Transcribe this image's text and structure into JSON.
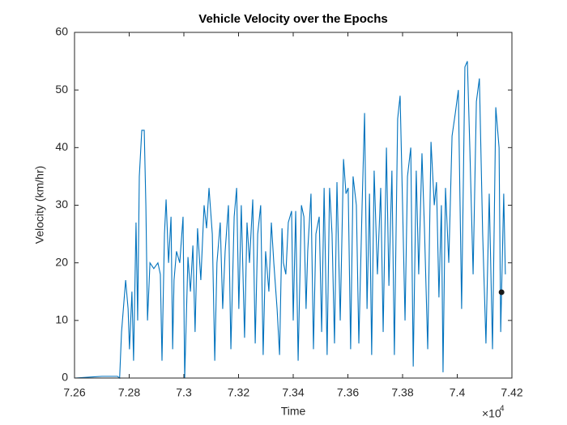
{
  "chart_data": {
    "type": "line",
    "title": "Vehicle Velocity over the Epochs",
    "x_label": "Time",
    "y_label": "Velocity (km/hr)",
    "x_exponent": {
      "base": "×10",
      "power": "4"
    },
    "xlim": [
      72600,
      74200
    ],
    "ylim": [
      0,
      60
    ],
    "xticks": [
      {
        "value": 72600,
        "label": "7.26"
      },
      {
        "value": 72800,
        "label": "7.28"
      },
      {
        "value": 73000,
        "label": "7.3"
      },
      {
        "value": 73200,
        "label": "7.32"
      },
      {
        "value": 73400,
        "label": "7.34"
      },
      {
        "value": 73600,
        "label": "7.36"
      },
      {
        "value": 73800,
        "label": "7.38"
      },
      {
        "value": 74000,
        "label": "7.4"
      },
      {
        "value": 74200,
        "label": "7.42"
      }
    ],
    "yticks": [
      0,
      10,
      20,
      30,
      40,
      50,
      60
    ],
    "grid": false,
    "series": [
      {
        "color": "#0072bd",
        "x": [
          72600,
          72668,
          72700,
          72757,
          72765,
          72772,
          72787,
          72796,
          72801,
          72810,
          72816,
          72825,
          72831,
          72837,
          72846,
          72855,
          72861,
          72867,
          72876,
          72890,
          72905,
          72914,
          72920,
          72929,
          72935,
          72944,
          72953,
          72959,
          72964,
          72973,
          72985,
          72997,
          73003,
          73015,
          73024,
          73033,
          73041,
          73050,
          73062,
          73074,
          73083,
          73092,
          73104,
          73113,
          73121,
          73133,
          73142,
          73151,
          73163,
          73172,
          73184,
          73193,
          73201,
          73210,
          73222,
          73231,
          73240,
          73252,
          73261,
          73270,
          73281,
          73290,
          73299,
          73311,
          73320,
          73329,
          73341,
          73350,
          73359,
          73364,
          73373,
          73382,
          73394,
          73400,
          73409,
          73418,
          73430,
          73439,
          73447,
          73453,
          73465,
          73474,
          73483,
          73495,
          73504,
          73513,
          73524,
          73533,
          73542,
          73551,
          73560,
          73572,
          73584,
          73593,
          73601,
          73610,
          73619,
          73631,
          73640,
          73652,
          73661,
          73670,
          73679,
          73687,
          73696,
          73708,
          73720,
          73729,
          73741,
          73750,
          73761,
          73770,
          73782,
          73791,
          73800,
          73809,
          73818,
          73830,
          73839,
          73850,
          73859,
          73871,
          73880,
          73892,
          73904,
          73916,
          73924,
          73933,
          73942,
          73948,
          73957,
          73969,
          73981,
          73993,
          74004,
          74016,
          74028,
          74037,
          74046,
          74058,
          74070,
          74081,
          74093,
          74105,
          74117,
          74129,
          74141,
          74153,
          74159,
          74170,
          74176
        ],
        "values": [
          0,
          0.2,
          0.3,
          0.3,
          0,
          8,
          17,
          12,
          5,
          15,
          3,
          27,
          10,
          35,
          43,
          43,
          30,
          10,
          20,
          19,
          20,
          18,
          3,
          25,
          31,
          20,
          28,
          5,
          17,
          22,
          20,
          28,
          0,
          21,
          15,
          23,
          8,
          26,
          17,
          30,
          26,
          33,
          25,
          3,
          20,
          27,
          12,
          22,
          30,
          5,
          28,
          33,
          12,
          30,
          7,
          27,
          20,
          31,
          6,
          25,
          30,
          4,
          22,
          15,
          27,
          20,
          12,
          4,
          26,
          20,
          18,
          27,
          29,
          10,
          29,
          3,
          30,
          28,
          12,
          22,
          32,
          5,
          25,
          28,
          8,
          33,
          4,
          33,
          25,
          6,
          34,
          10,
          38,
          32,
          33,
          5,
          35,
          30,
          6,
          30,
          46,
          12,
          32,
          4,
          36,
          18,
          33,
          8,
          40,
          16,
          36,
          4,
          45,
          49,
          30,
          10,
          35,
          40,
          2,
          36,
          18,
          39,
          26,
          5,
          41,
          30,
          34,
          14,
          30,
          1,
          33,
          20,
          42,
          46,
          50,
          12,
          54,
          55,
          40,
          18,
          48,
          52,
          25,
          6,
          32,
          5,
          47,
          40,
          8,
          32,
          18
        ]
      }
    ],
    "marker": {
      "x": 74162,
      "y": 14.9,
      "color": "#1a1a1a"
    }
  }
}
